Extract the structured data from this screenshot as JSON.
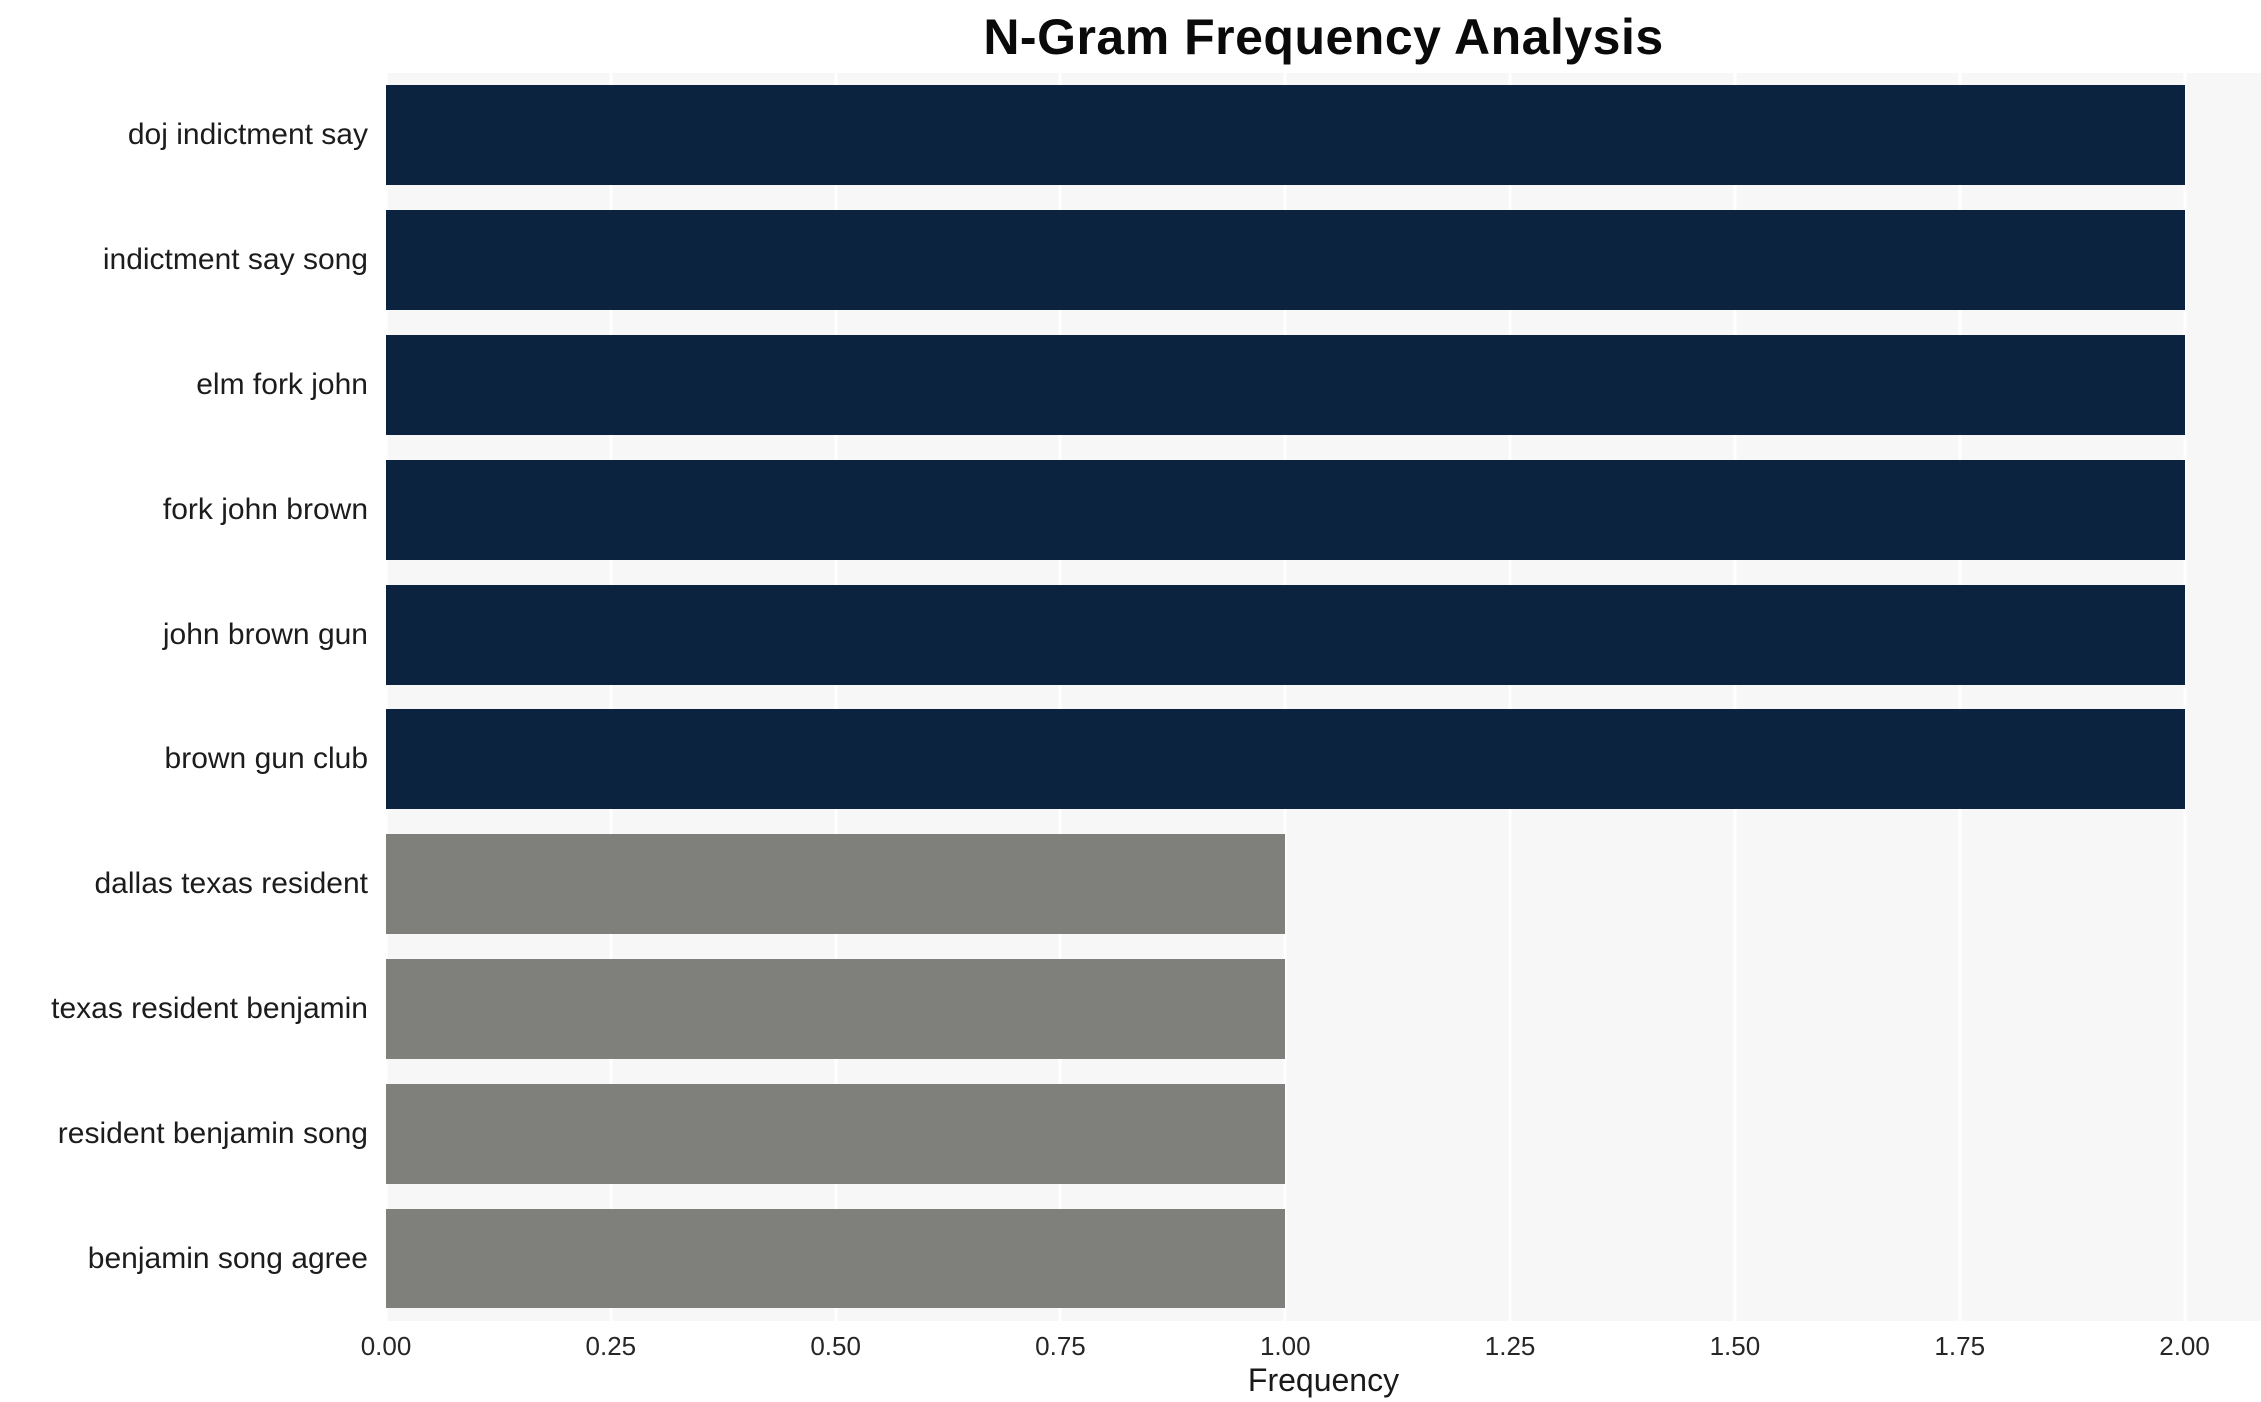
{
  "chart_data": {
    "type": "bar",
    "orientation": "horizontal",
    "title": "N-Gram Frequency Analysis",
    "xlabel": "Frequency",
    "ylabel": "",
    "categories": [
      "doj indictment say",
      "indictment say song",
      "elm fork john",
      "fork john brown",
      "john brown gun",
      "brown gun club",
      "dallas texas resident",
      "texas resident benjamin",
      "resident benjamin song",
      "benjamin song agree"
    ],
    "values": [
      2,
      2,
      2,
      2,
      2,
      2,
      1,
      1,
      1,
      1
    ],
    "colors": [
      "#0c2340",
      "#0c2340",
      "#0c2340",
      "#0c2340",
      "#0c2340",
      "#0c2340",
      "#7f7f7c",
      "#7f7f7c",
      "#7f7f7c",
      "#7f7f7c"
    ],
    "xlim": [
      0,
      2.085
    ],
    "xticks": [
      0.0,
      0.25,
      0.5,
      0.75,
      1.0,
      1.25,
      1.5,
      1.75,
      2.0
    ],
    "xtick_labels": [
      "0.00",
      "0.25",
      "0.50",
      "0.75",
      "1.00",
      "1.25",
      "1.50",
      "1.75",
      "2.00"
    ],
    "grid": "vertical",
    "grid_color": "#ffffff",
    "plot_background": "#f7f7f7",
    "legend": "none"
  }
}
